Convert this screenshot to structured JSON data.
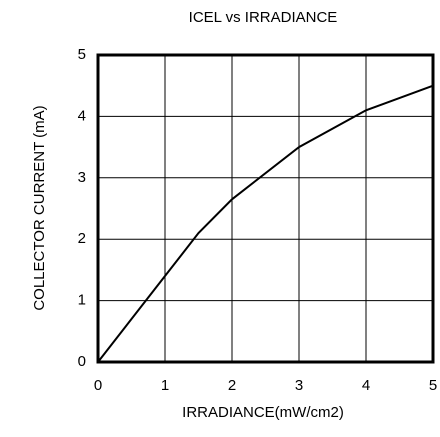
{
  "chart_data": {
    "type": "line",
    "title": "ICEL vs IRRADIANCE",
    "x_label": "IRRADIANCE(mW/cm2)",
    "y_label": "COLLECTOR CURRENT (mA)",
    "x": [
      0,
      1,
      1.5,
      2,
      3,
      4,
      5
    ],
    "series": [
      {
        "name": "ICEL",
        "color": "#000000",
        "values": [
          0,
          1.4,
          2.1,
          2.65,
          3.5,
          4.1,
          4.5
        ]
      }
    ],
    "xlim": [
      0,
      5
    ],
    "xticks": [
      0,
      1,
      2,
      3,
      4,
      5
    ],
    "ylim": [
      0,
      5
    ],
    "yticks": [
      0,
      1,
      2,
      3,
      4,
      5
    ],
    "grid": true
  }
}
